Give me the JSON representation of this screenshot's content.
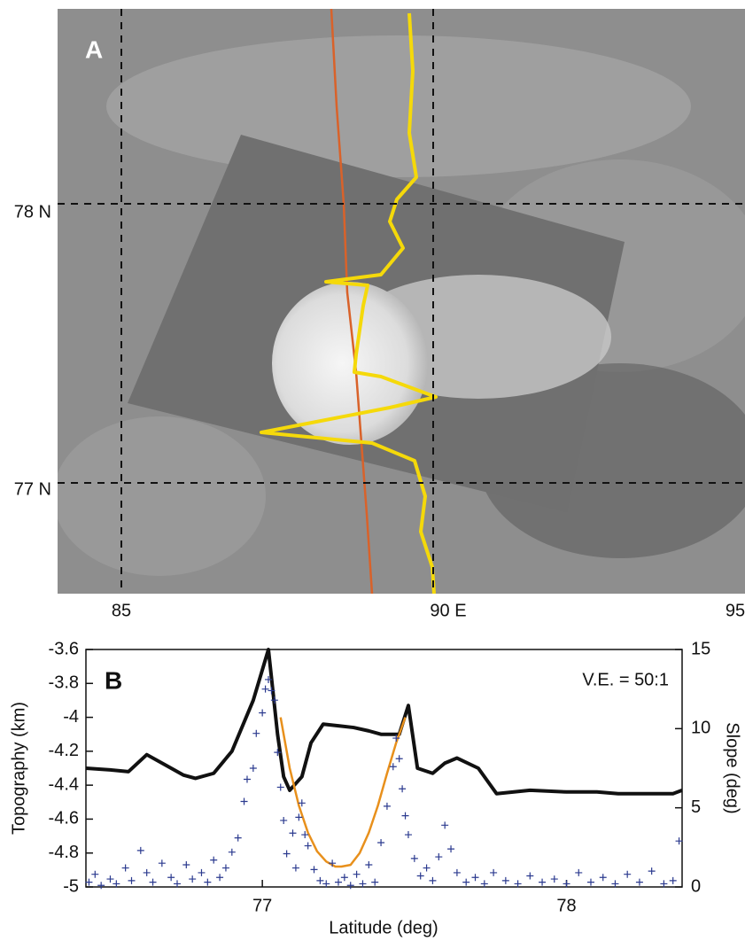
{
  "panel_a": {
    "letter": "A",
    "lat_labels": [
      "78 N",
      "77 N"
    ],
    "lon_labels": [
      "85",
      "90 E",
      "95"
    ]
  },
  "chart_data": {
    "type": "line",
    "panel_label": "B",
    "annotation": "V.E. = 50:1",
    "x_label": "Latitude (deg)",
    "y_label": "Topography (km)",
    "y2_label": "Slope (deg)",
    "xlim": [
      76.42,
      78.38
    ],
    "xticks": [
      77,
      78
    ],
    "ylim": [
      -5,
      -3.6
    ],
    "yticks": [
      -3.6,
      -3.8,
      -4,
      -4.2,
      -4.4,
      -4.6,
      -4.8,
      -5
    ],
    "y2lim": [
      0,
      15
    ],
    "y2ticks": [
      0,
      5,
      10,
      15
    ],
    "series": [
      {
        "color": "#111111",
        "x": [
          76.42,
          76.5,
          76.56,
          76.62,
          76.68,
          76.74,
          76.78,
          76.84,
          76.9,
          76.97,
          77.02,
          77.05,
          77.07,
          77.09,
          77.13,
          77.16,
          77.2,
          77.25,
          77.3,
          77.35,
          77.39,
          77.45,
          77.48,
          77.51,
          77.56,
          77.6,
          77.64,
          77.71,
          77.77,
          77.88,
          78.0,
          78.1,
          78.17,
          78.25,
          78.35,
          78.38
        ],
        "values": [
          -4.3,
          -4.31,
          -4.32,
          -4.22,
          -4.28,
          -4.34,
          -4.36,
          -4.33,
          -4.2,
          -3.9,
          -3.6,
          -4.1,
          -4.35,
          -4.43,
          -4.35,
          -4.15,
          -4.04,
          -4.05,
          -4.06,
          -4.08,
          -4.1,
          -4.1,
          -3.93,
          -4.3,
          -4.33,
          -4.27,
          -4.24,
          -4.3,
          -4.45,
          -4.43,
          -4.44,
          -4.44,
          -4.45,
          -4.45,
          -4.45,
          -4.43
        ]
      },
      {
        "color": "#e8901c",
        "x": [
          77.06,
          77.09,
          77.12,
          77.15,
          77.18,
          77.21,
          77.24,
          77.26,
          77.29,
          77.32,
          77.35,
          77.38,
          77.41,
          77.44,
          77.47
        ],
        "values": [
          -4.0,
          -4.3,
          -4.52,
          -4.68,
          -4.79,
          -4.85,
          -4.88,
          -4.88,
          -4.87,
          -4.8,
          -4.68,
          -4.52,
          -4.33,
          -4.15,
          -4.0
        ]
      },
      {
        "type": "scatter",
        "axis": "y2",
        "color": "#2b3a8f",
        "x": [
          76.43,
          76.45,
          76.47,
          76.5,
          76.52,
          76.55,
          76.57,
          76.6,
          76.62,
          76.64,
          76.67,
          76.7,
          76.72,
          76.75,
          76.77,
          76.8,
          76.82,
          76.84,
          76.86,
          76.88,
          76.9,
          76.92,
          76.94,
          76.95,
          76.97,
          76.98,
          77.0,
          77.01,
          77.02,
          77.03,
          77.04,
          77.05,
          77.06,
          77.07,
          77.08,
          77.1,
          77.11,
          77.12,
          77.13,
          77.14,
          77.15,
          77.17,
          77.19,
          77.21,
          77.23,
          77.25,
          77.27,
          77.29,
          77.31,
          77.33,
          77.35,
          77.37,
          77.39,
          77.41,
          77.43,
          77.44,
          77.45,
          77.46,
          77.47,
          77.48,
          77.5,
          77.52,
          77.54,
          77.56,
          77.58,
          77.6,
          77.62,
          77.64,
          77.67,
          77.7,
          77.73,
          77.76,
          77.8,
          77.84,
          77.88,
          77.92,
          77.96,
          78.0,
          78.04,
          78.08,
          78.12,
          78.16,
          78.2,
          78.24,
          78.28,
          78.32,
          78.35,
          78.37
        ],
        "values": [
          0.3,
          0.8,
          0.1,
          0.5,
          0.2,
          1.2,
          0.4,
          2.3,
          0.9,
          0.3,
          1.5,
          0.6,
          0.2,
          1.4,
          0.5,
          0.9,
          0.3,
          1.7,
          0.6,
          1.2,
          2.2,
          3.1,
          5.4,
          6.8,
          7.5,
          9.7,
          11.0,
          12.5,
          13.1,
          12.4,
          11.8,
          8.5,
          6.3,
          4.2,
          2.1,
          3.4,
          1.2,
          4.4,
          5.3,
          3.3,
          2.6,
          1.1,
          0.4,
          0.2,
          1.5,
          0.3,
          0.6,
          0.1,
          0.8,
          0.2,
          1.4,
          0.3,
          2.8,
          5.1,
          7.6,
          9.4,
          8.1,
          6.2,
          4.5,
          3.3,
          1.8,
          0.7,
          1.2,
          0.4,
          1.9,
          3.9,
          2.4,
          0.9,
          0.3,
          0.6,
          0.2,
          0.9,
          0.4,
          0.2,
          0.7,
          0.3,
          0.5,
          0.2,
          0.9,
          0.3,
          0.6,
          0.2,
          0.8,
          0.3,
          1.0,
          0.2,
          0.4,
          2.9
        ]
      }
    ]
  }
}
